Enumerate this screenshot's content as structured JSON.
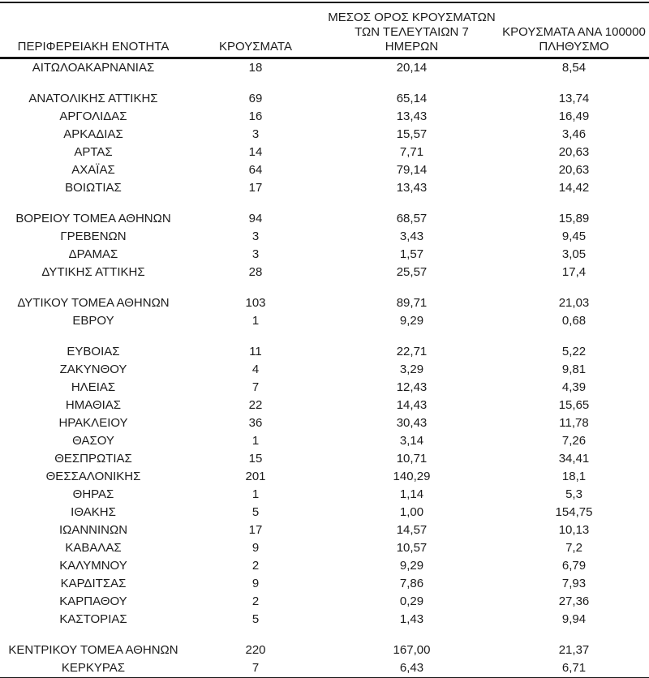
{
  "colors": {
    "background": "#ffffff",
    "text": "#1c1c1c",
    "border": "#161616"
  },
  "table": {
    "headers": {
      "region": "ΠΕΡΙΦΕΡΕΙΑΚΗ ΕΝΟΤΗΤΑ",
      "cases": "ΚΡΟΥΣΜΑΤΑ",
      "avg7_lines": [
        "ΜΕΣΟΣ ΟΡΟΣ ΚΡΟΥΣΜΑΤΩΝ",
        "ΤΩΝ ΤΕΛΕΥΤΑΙΩΝ 7",
        "ΗΜΕΡΩΝ"
      ],
      "per100k_lines": [
        "ΚΡΟΥΣΜΑΤΑ ΑΝΑ 100000",
        "ΠΛΗΘΥΣΜΟ"
      ]
    },
    "rows": [
      {
        "region": "ΑΙΤΩΛΟΑΚΑΡΝΑΝΙΑΣ",
        "cases": "18",
        "avg7": "20,14",
        "per100k": "8,54"
      },
      {
        "spacer": true
      },
      {
        "region": "ΑΝΑΤΟΛΙΚΗΣ ΑΤΤΙΚΗΣ",
        "cases": "69",
        "avg7": "65,14",
        "per100k": "13,74"
      },
      {
        "region": "ΑΡΓΟΛΙΔΑΣ",
        "cases": "16",
        "avg7": "13,43",
        "per100k": "16,49"
      },
      {
        "region": "ΑΡΚΑΔΙΑΣ",
        "cases": "3",
        "avg7": "15,57",
        "per100k": "3,46"
      },
      {
        "region": "ΑΡΤΑΣ",
        "cases": "14",
        "avg7": "7,71",
        "per100k": "20,63"
      },
      {
        "region": "ΑΧΑΪΑΣ",
        "cases": "64",
        "avg7": "79,14",
        "per100k": "20,63"
      },
      {
        "region": "ΒΟΙΩΤΙΑΣ",
        "cases": "17",
        "avg7": "13,43",
        "per100k": "14,42"
      },
      {
        "spacer": true
      },
      {
        "region": "ΒΟΡΕΙΟΥ ΤΟΜΕΑ ΑΘΗΝΩΝ",
        "cases": "94",
        "avg7": "68,57",
        "per100k": "15,89"
      },
      {
        "region": "ΓΡΕΒΕΝΩΝ",
        "cases": "3",
        "avg7": "3,43",
        "per100k": "9,45"
      },
      {
        "region": "ΔΡΑΜΑΣ",
        "cases": "3",
        "avg7": "1,57",
        "per100k": "3,05"
      },
      {
        "region": "ΔΥΤΙΚΗΣ ΑΤΤΙΚΗΣ",
        "cases": "28",
        "avg7": "25,57",
        "per100k": "17,4"
      },
      {
        "spacer": true
      },
      {
        "region": "ΔΥΤΙΚΟΥ ΤΟΜΕΑ ΑΘΗΝΩΝ",
        "cases": "103",
        "avg7": "89,71",
        "per100k": "21,03"
      },
      {
        "region": "ΕΒΡΟΥ",
        "cases": "1",
        "avg7": "9,29",
        "per100k": "0,68"
      },
      {
        "spacer": true
      },
      {
        "region": "ΕΥΒΟΙΑΣ",
        "cases": "11",
        "avg7": "22,71",
        "per100k": "5,22"
      },
      {
        "region": "ΖΑΚΥΝΘΟΥ",
        "cases": "4",
        "avg7": "3,29",
        "per100k": "9,81"
      },
      {
        "region": "ΗΛΕΙΑΣ",
        "cases": "7",
        "avg7": "12,43",
        "per100k": "4,39"
      },
      {
        "region": "ΗΜΑΘΙΑΣ",
        "cases": "22",
        "avg7": "14,43",
        "per100k": "15,65"
      },
      {
        "region": "ΗΡΑΚΛΕΙΟΥ",
        "cases": "36",
        "avg7": "30,43",
        "per100k": "11,78"
      },
      {
        "region": "ΘΑΣΟΥ",
        "cases": "1",
        "avg7": "3,14",
        "per100k": "7,26"
      },
      {
        "region": "ΘΕΣΠΡΩΤΙΑΣ",
        "cases": "15",
        "avg7": "10,71",
        "per100k": "34,41"
      },
      {
        "region": "ΘΕΣΣΑΛΟΝΙΚΗΣ",
        "cases": "201",
        "avg7": "140,29",
        "per100k": "18,1"
      },
      {
        "region": "ΘΗΡΑΣ",
        "cases": "1",
        "avg7": "1,14",
        "per100k": "5,3"
      },
      {
        "region": "ΙΘΑΚΗΣ",
        "cases": "5",
        "avg7": "1,00",
        "per100k": "154,75"
      },
      {
        "region": "ΙΩΑΝΝΙΝΩΝ",
        "cases": "17",
        "avg7": "14,57",
        "per100k": "10,13"
      },
      {
        "region": "ΚΑΒΑΛΑΣ",
        "cases": "9",
        "avg7": "10,57",
        "per100k": "7,2"
      },
      {
        "region": "ΚΑΛΥΜΝΟΥ",
        "cases": "2",
        "avg7": "9,29",
        "per100k": "6,79"
      },
      {
        "region": "ΚΑΡΔΙΤΣΑΣ",
        "cases": "9",
        "avg7": "7,86",
        "per100k": "7,93"
      },
      {
        "region": "ΚΑΡΠΑΘΟΥ",
        "cases": "2",
        "avg7": "0,29",
        "per100k": "27,36"
      },
      {
        "region": "ΚΑΣΤΟΡΙΑΣ",
        "cases": "5",
        "avg7": "1,43",
        "per100k": "9,94"
      },
      {
        "spacer": true
      },
      {
        "region": "ΚΕΝΤΡΙΚΟΥ ΤΟΜΕΑ ΑΘΗΝΩΝ",
        "cases": "220",
        "avg7": "167,00",
        "per100k": "21,37"
      },
      {
        "region": "ΚΕΡΚΥΡΑΣ",
        "cases": "7",
        "avg7": "6,43",
        "per100k": "6,71"
      }
    ]
  }
}
